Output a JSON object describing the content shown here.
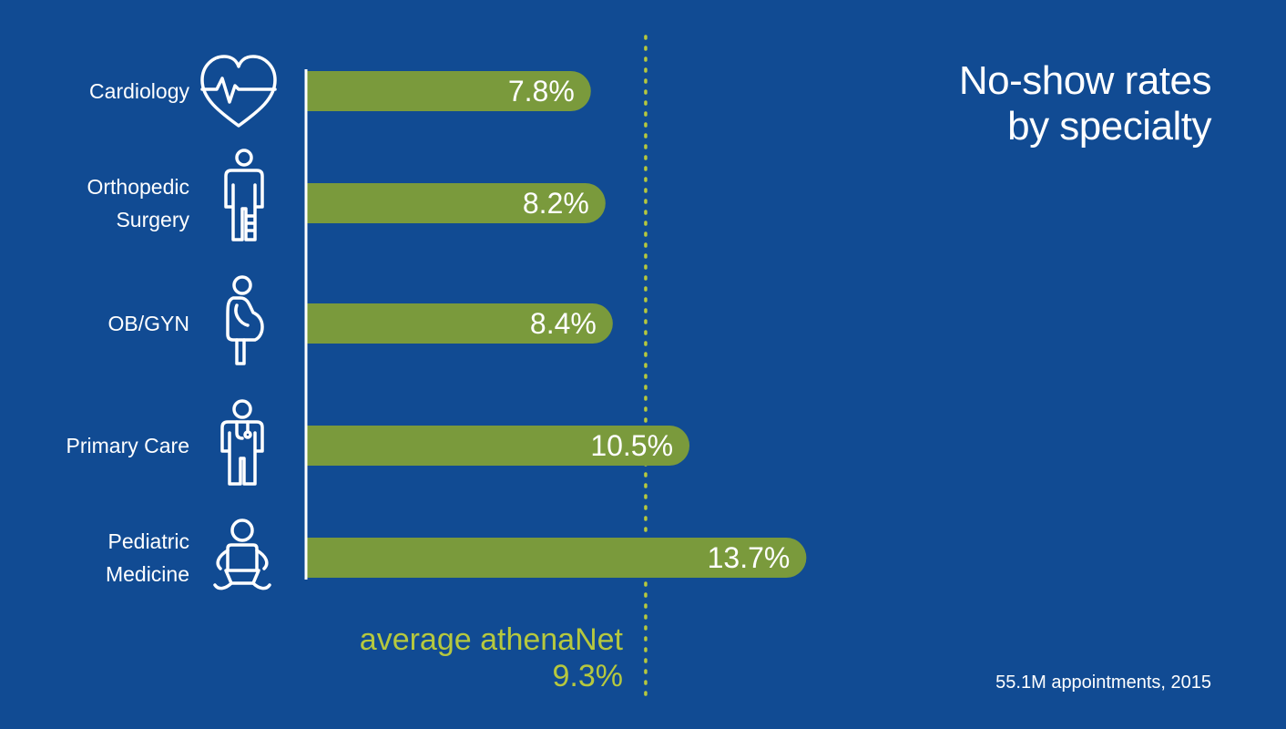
{
  "chart_data": {
    "type": "bar",
    "orientation": "horizontal",
    "title": [
      "No-show rates",
      "by specialty"
    ],
    "categories": [
      {
        "label": [
          "Cardiology"
        ],
        "icon": "heart-pulse-icon"
      },
      {
        "label": [
          "Orthopedic",
          "Surgery"
        ],
        "icon": "person-with-cast-icon"
      },
      {
        "label": [
          "OB/GYN"
        ],
        "icon": "pregnant-woman-icon"
      },
      {
        "label": [
          "Primary Care"
        ],
        "icon": "doctor-icon"
      },
      {
        "label": [
          "Pediatric",
          "Medicine"
        ],
        "icon": "baby-icon"
      }
    ],
    "values": [
      7.8,
      8.2,
      8.4,
      10.5,
      13.7
    ],
    "value_labels": [
      "7.8%",
      "8.2%",
      "8.4%",
      "10.5%",
      "13.7%"
    ],
    "reference_line": {
      "value": 9.3,
      "label": [
        "average athenaNet",
        "9.3%"
      ],
      "style": "dotted"
    },
    "footnote": "55.1M appointments, 2015",
    "bar_color": "#7a9a3c",
    "reference_color": "#b6c83e",
    "background_color": "#114b93"
  }
}
